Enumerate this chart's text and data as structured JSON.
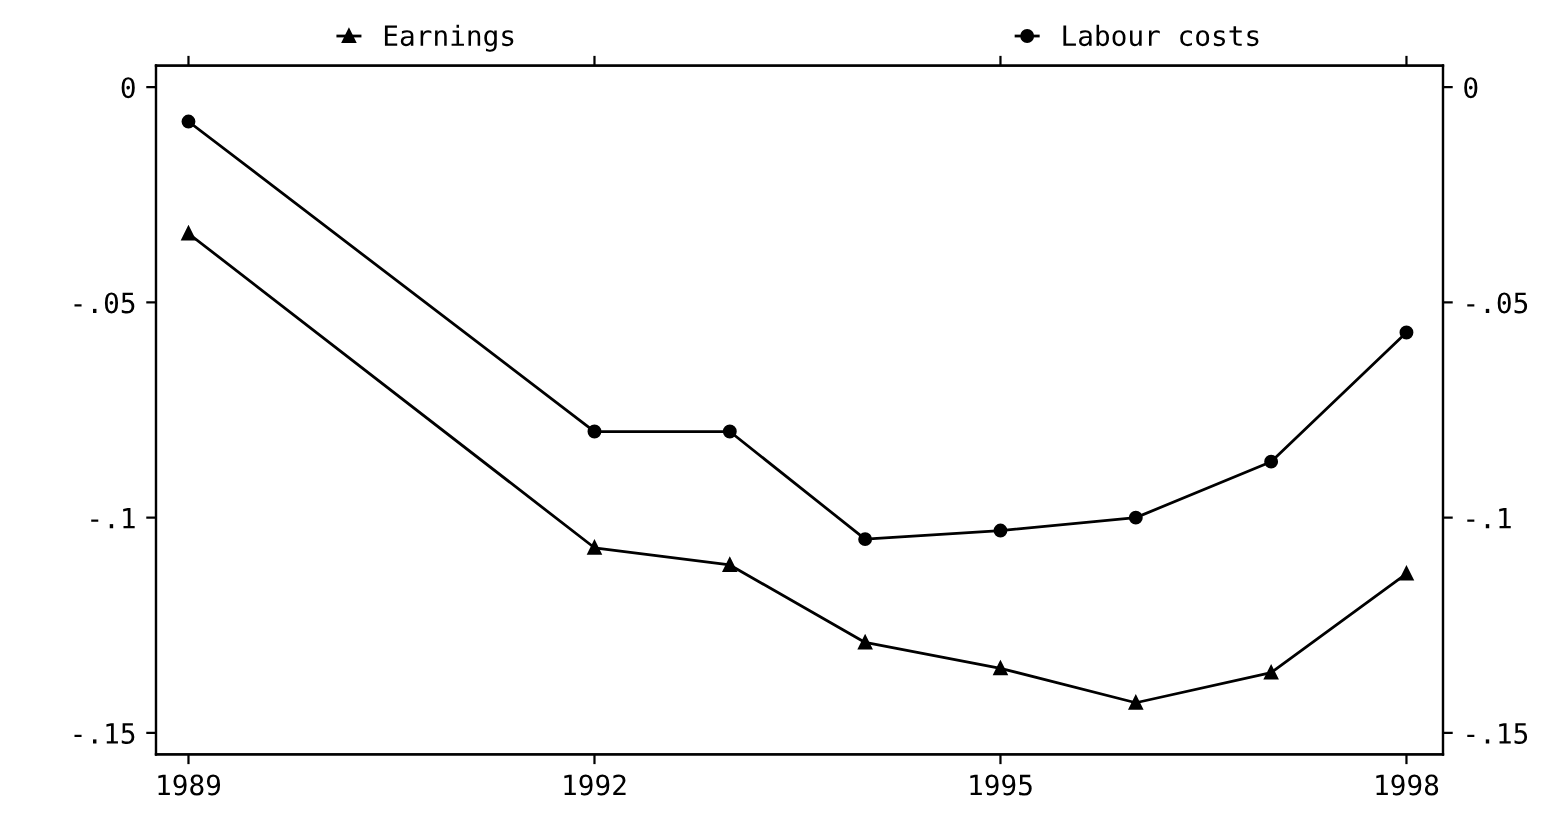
{
  "chart_data": {
    "type": "line",
    "x": [
      1989,
      1992,
      1993,
      1994,
      1995,
      1996,
      1997,
      1998
    ],
    "series": [
      {
        "name": "Earnings",
        "color": "#000000",
        "marker": "triangle",
        "values": [
          -0.034,
          -0.107,
          -0.111,
          -0.129,
          -0.135,
          -0.143,
          -0.136,
          -0.113
        ]
      },
      {
        "name": "Labour costs",
        "color": "#000000",
        "marker": "circle",
        "values": [
          -0.008,
          -0.08,
          -0.08,
          -0.105,
          -0.103,
          -0.1,
          -0.087,
          -0.057
        ]
      }
    ],
    "xlim": [
      1988.76,
      1998.27
    ],
    "xticks": [
      1989,
      1992,
      1995,
      1998
    ],
    "ylim": [
      -0.155,
      0.005
    ],
    "yticks": [
      0,
      {
        "value": -0.05,
        "label": "-.05"
      },
      {
        "value": -0.1,
        "label": "-.1"
      },
      {
        "value": -0.15,
        "label": "-.15"
      }
    ],
    "y2lim": [
      -0.155,
      0.005
    ],
    "y2ticks": [
      0,
      {
        "value": -0.05,
        "label": "-.05"
      },
      {
        "value": -0.1,
        "label": "-.1"
      },
      {
        "value": -0.15,
        "label": "-.15"
      }
    ],
    "grid": false,
    "legend": "top",
    "line_style": "solid"
  }
}
